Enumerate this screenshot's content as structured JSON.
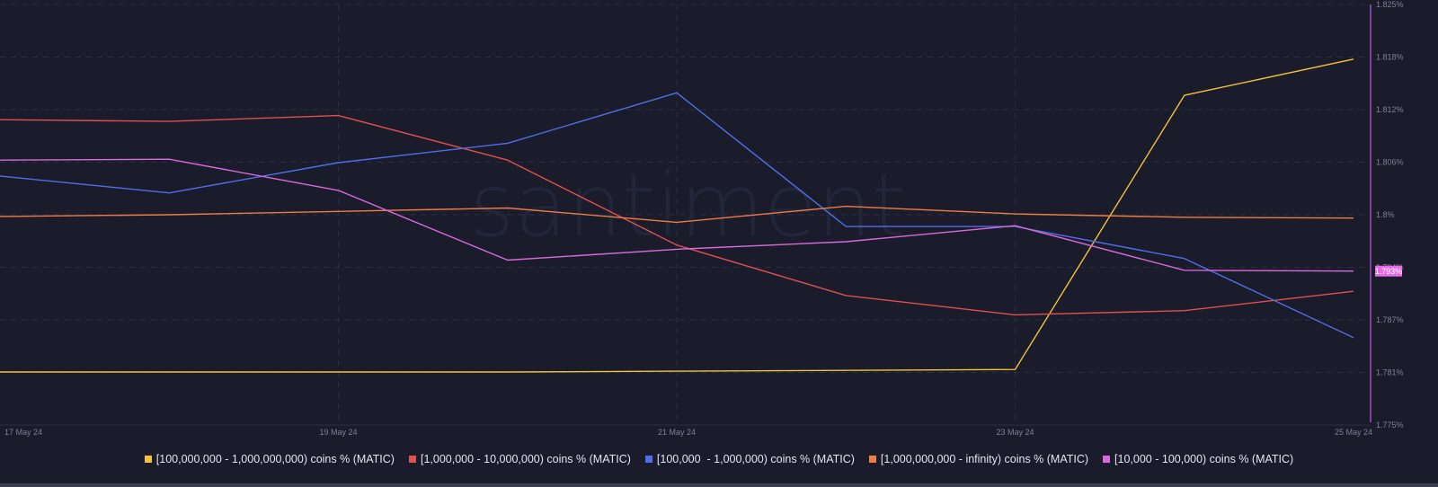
{
  "chart_data": {
    "type": "line",
    "title": "",
    "xlabel": "",
    "ylabel": "",
    "watermark": "santiment",
    "x": [
      "17 May 24",
      "18 May 24",
      "19 May 24",
      "20 May 24",
      "21 May 24",
      "22 May 24",
      "23 May 24",
      "24 May 24",
      "25 May 24"
    ],
    "x_tick_labels": [
      "17 May 24",
      "19 May 24",
      "21 May 24",
      "23 May 24",
      "25 May 24"
    ],
    "y_tick_labels": [
      "1.825%",
      "1.818%",
      "1.812%",
      "1.806%",
      "1.8%",
      "1.794%",
      "1.787%",
      "1.781%",
      "1.775%"
    ],
    "ylim": [
      1.775,
      1.825
    ],
    "grid": true,
    "legend_position": "bottom",
    "current_value_label": "1.793%",
    "current_value_color": "#e86ce8",
    "series": [
      {
        "name": "[100,000,000 - 1,000,000,000) coins % (MATIC)",
        "color": "#f2c23c",
        "values": [
          1.7813,
          1.7813,
          1.7813,
          1.7813,
          1.7814,
          1.7815,
          1.7816,
          1.8142,
          1.8185
        ]
      },
      {
        "name": "[1,000,000 - 10,000,000) coins % (MATIC)",
        "color": "#e0504e",
        "values": [
          1.8113,
          1.8111,
          1.8118,
          1.8065,
          1.7964,
          1.7904,
          1.7881,
          1.7886,
          1.7909
        ]
      },
      {
        "name": "[100,000  - 1,000,000) coins % (MATIC)",
        "color": "#4f6ee8",
        "values": [
          1.8046,
          1.8026,
          1.8062,
          1.8085,
          1.8145,
          1.7986,
          1.7986,
          1.7948,
          1.7854
        ]
      },
      {
        "name": "[1,000,000,000 - infinity) coins % (MATIC)",
        "color": "#ef7c44",
        "values": [
          1.7998,
          1.8,
          1.8004,
          1.8008,
          1.7991,
          1.801,
          1.8001,
          1.7997,
          1.7996
        ]
      },
      {
        "name": "[10,000 - 100,000) coins % (MATIC)",
        "color": "#d969de",
        "values": [
          1.8065,
          1.8066,
          1.8029,
          1.7946,
          1.7959,
          1.7968,
          1.7987,
          1.7934,
          1.7933
        ]
      }
    ]
  },
  "colors": {
    "background": "#1a1c2b",
    "grid": "#2a2e42",
    "axis": "#9b4fc4",
    "tick_text": "#7d8197",
    "legend_text": "#e3e5ee"
  }
}
